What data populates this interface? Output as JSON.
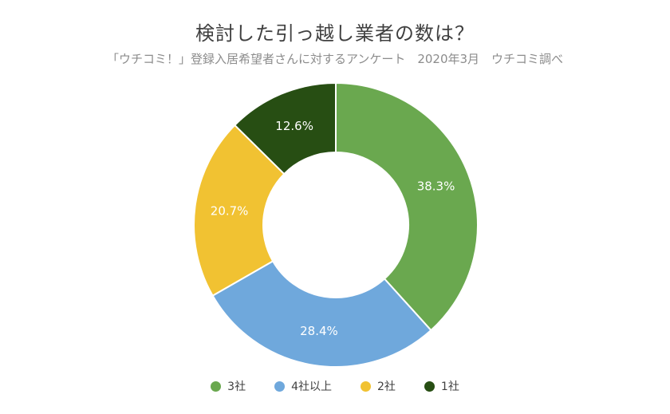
{
  "chart_data": {
    "type": "pie",
    "title": "検討した引っ越し業者の数は？",
    "subtitle": "「ウチコミ！」登録入居希望者さんに対するアンケート　2020年3月　ウチコミ調べ",
    "donut": true,
    "legend_position": "bottom",
    "slices": [
      {
        "label": "3社",
        "value": 38.3,
        "value_label": "38.3%",
        "color": "#6aa84f"
      },
      {
        "label": "4社以上",
        "value": 28.4,
        "value_label": "28.4%",
        "color": "#6fa8dc"
      },
      {
        "label": "2社",
        "value": 20.7,
        "value_label": "20.7%",
        "color": "#f1c232"
      },
      {
        "label": "1社",
        "value": 12.6,
        "value_label": "12.6%",
        "color": "#274e13"
      }
    ]
  }
}
